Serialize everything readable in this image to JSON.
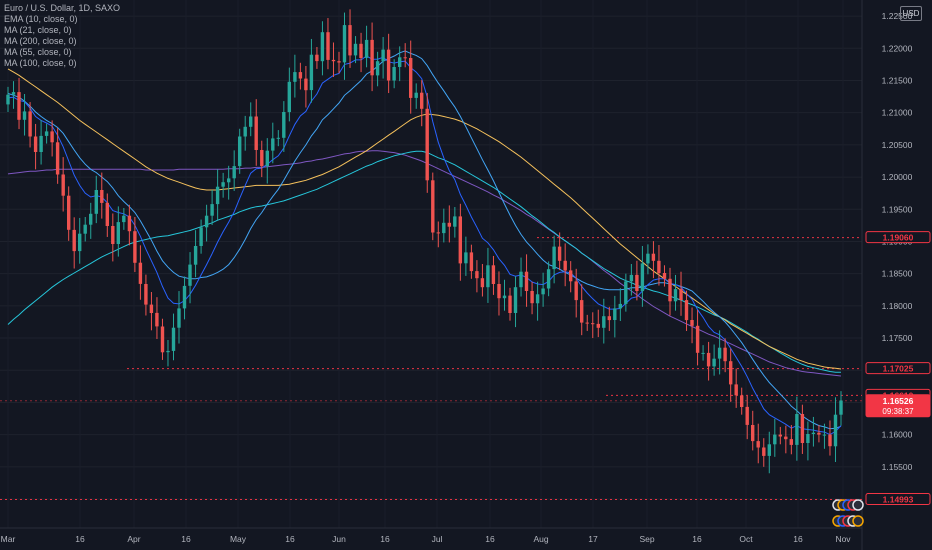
{
  "legend": {
    "title": "Euro / U.S. Dollar, 1D, SAXO",
    "indicators": [
      "EMA (10, close, 0)",
      "MA (21, close, 0)",
      "MA (200, close, 0)",
      "MA (55, close, 0)",
      "MA (100, close, 0)"
    ]
  },
  "currency_badge": "USD",
  "colors": {
    "background": "#131722",
    "up": "#26a69a",
    "down": "#ef5350",
    "ema10": "#2962ff",
    "ma21": "#42a5f5",
    "ma200": "#7e57c2",
    "ma55": "#26c6da",
    "ma100": "#f5c15c",
    "level": "#f23645"
  },
  "chart_data": {
    "type": "candlestick",
    "title": "Euro / U.S. Dollar, 1D, SAXO",
    "ylim": [
      1.1455,
      1.2275
    ],
    "y_ticks": [
      "1.22500",
      "1.22000",
      "1.21500",
      "1.21000",
      "1.20500",
      "1.20000",
      "1.19500",
      "1.19000",
      "1.18500",
      "1.18000",
      "1.17500",
      "1.17000",
      "1.16500",
      "1.16000",
      "1.15500",
      "1.15000"
    ],
    "x_ticks": [
      "Mar",
      "16",
      "Apr",
      "16",
      "May",
      "16",
      "Jun",
      "16",
      "Jul",
      "16",
      "Aug",
      "17",
      "Sep",
      "16",
      "Oct",
      "16",
      "Nov"
    ],
    "price_labels": [
      {
        "text": "1.19060",
        "value": 1.1906,
        "style": "outline"
      },
      {
        "text": "1.17025",
        "value": 1.17025,
        "style": "outline"
      },
      {
        "text": "1.16610",
        "value": 1.1661,
        "style": "outline"
      },
      {
        "text": "1.16526",
        "value": 1.16526,
        "style": "filled",
        "sub": "09:38:37"
      },
      {
        "text": "1.14993",
        "value": 1.14993,
        "style": "outline"
      }
    ],
    "levels": [
      1.1906,
      1.17025,
      1.1661,
      1.16526,
      1.14993
    ],
    "closes": [
      1.2128,
      1.2132,
      1.2089,
      1.2102,
      1.2063,
      1.2039,
      1.2064,
      1.2071,
      1.2054,
      1.2004,
      1.1971,
      1.1918,
      1.1885,
      1.1912,
      1.1926,
      1.1943,
      1.198,
      1.196,
      1.1924,
      1.1896,
      1.193,
      1.194,
      1.1916,
      1.1867,
      1.1834,
      1.1802,
      1.1789,
      1.1768,
      1.1728,
      1.173,
      1.1766,
      1.1796,
      1.1831,
      1.1864,
      1.1893,
      1.1922,
      1.194,
      1.1958,
      1.1985,
      1.1992,
      1.1998,
      1.2017,
      1.2063,
      1.2078,
      1.2094,
      1.2042,
      1.2017,
      1.2041,
      1.206,
      1.2061,
      1.2101,
      1.2148,
      1.2163,
      1.2153,
      1.2135,
      1.219,
      1.218,
      1.2225,
      1.2182,
      1.218,
      1.2178,
      1.2236,
      1.2189,
      1.2207,
      1.2185,
      1.2213,
      1.2158,
      1.218,
      1.2198,
      1.215,
      1.2171,
      1.2186,
      1.2185,
      1.2123,
      1.2131,
      1.2106,
      1.1995,
      1.1914,
      1.1913,
      1.1929,
      1.1923,
      1.1939,
      1.1866,
      1.1883,
      1.1854,
      1.1843,
      1.1829,
      1.1863,
      1.1834,
      1.1812,
      1.1816,
      1.1789,
      1.1829,
      1.1853,
      1.1823,
      1.1804,
      1.1818,
      1.1827,
      1.1857,
      1.1892,
      1.187,
      1.1855,
      1.1838,
      1.1809,
      1.1774,
      1.1773,
      1.1772,
      1.1766,
      1.1784,
      1.1778,
      1.1796,
      1.1803,
      1.1838,
      1.1848,
      1.1823,
      1.1866,
      1.1881,
      1.187,
      1.1851,
      1.1842,
      1.1807,
      1.1826,
      1.1809,
      1.1778,
      1.1769,
      1.1727,
      1.1727,
      1.1706,
      1.1718,
      1.1735,
      1.1714,
      1.1678,
      1.1661,
      1.1643,
      1.1615,
      1.159,
      1.158,
      1.1567,
      1.1585,
      1.16,
      1.1597,
      1.1593,
      1.1584,
      1.1632,
      1.1587,
      1.1601,
      1.1603,
      1.16,
      1.16,
      1.1582,
      1.1631,
      1.1653
    ],
    "ema10": [
      1.2123,
      1.2124,
      1.2119,
      1.2117,
      1.2107,
      1.2094,
      1.2088,
      1.2084,
      1.2079,
      1.2065,
      1.2047,
      1.2025,
      1.2003,
      1.1987,
      1.1975,
      1.1969,
      1.1971,
      1.1969,
      1.196,
      1.1948,
      1.1945,
      1.1943,
      1.1938,
      1.1925,
      1.1908,
      1.1888,
      1.187,
      1.1852,
      1.183,
      1.1812,
      1.1804,
      1.1803,
      1.1808,
      1.1818,
      1.1832,
      1.1848,
      1.1864,
      1.1881,
      1.1899,
      1.1915,
      1.193,
      1.1946,
      1.1967,
      1.1987,
      1.2006,
      1.2013,
      1.2014,
      1.202,
      1.2027,
      1.2033,
      1.2045,
      1.2064,
      1.2082,
      1.2095,
      1.2102,
      1.2118,
      1.2129,
      1.2146,
      1.2152,
      1.2158,
      1.2161,
      1.2175,
      1.2177,
      1.2182,
      1.2182,
      1.2188,
      1.2183,
      1.2183,
      1.2186,
      1.2179,
      1.2177,
      1.2179,
      1.218,
      1.217,
      1.2163,
      1.2153,
      1.2124,
      1.2086,
      1.2054,
      1.203,
      1.201,
      1.1996,
      1.1973,
      1.1956,
      1.1938,
      1.1922,
      1.1905,
      1.1898,
      1.1887,
      1.1873,
      1.1863,
      1.1849,
      1.1846,
      1.1848,
      1.1844,
      1.1837,
      1.1834,
      1.1833,
      1.1838,
      1.1848,
      1.1852,
      1.1853,
      1.1851,
      1.1843,
      1.183,
      1.182,
      1.1811,
      1.1803,
      1.1799,
      1.1795,
      1.1795,
      1.1796,
      1.1804,
      1.1812,
      1.1814,
      1.1823,
      1.1833,
      1.184,
      1.1842,
      1.1842,
      1.1835,
      1.1833,
      1.1829,
      1.1819,
      1.181,
      1.1794,
      1.1782,
      1.1768,
      1.1759,
      1.1755,
      1.1747,
      1.1734,
      1.172,
      1.1706,
      1.169,
      1.1672,
      1.1656,
      1.164,
      1.1631,
      1.1626,
      1.1621,
      1.1616,
      1.161,
      1.1614,
      1.1609,
      1.1608,
      1.1607,
      1.1605,
      1.1604,
      1.16,
      1.1605,
      1.1614
    ],
    "ma21": [
      1.213,
      1.2127,
      1.2124,
      1.2118,
      1.211,
      1.2101,
      1.2094,
      1.2088,
      1.2083,
      1.2077,
      1.2068,
      1.2055,
      1.2042,
      1.203,
      1.202,
      1.2012,
      1.2007,
      1.2,
      1.1993,
      1.1983,
      1.1971,
      1.1962,
      1.1954,
      1.1945,
      1.1932,
      1.1917,
      1.1902,
      1.1885,
      1.187,
      1.186,
      1.1852,
      1.1846,
      1.1844,
      1.1842,
      1.1842,
      1.1844,
      1.1845,
      1.1848,
      1.1852,
      1.1857,
      1.1864,
      1.1875,
      1.1888,
      1.1903,
      1.192,
      1.1934,
      1.1945,
      1.1958,
      1.197,
      1.1981,
      1.1995,
      1.201,
      1.2025,
      1.2038,
      1.205,
      1.2064,
      1.2075,
      1.2089,
      1.2097,
      1.2106,
      1.2115,
      1.2127,
      1.2134,
      1.2142,
      1.215,
      1.216,
      1.2165,
      1.2172,
      1.218,
      1.2184,
      1.2188,
      1.2193,
      1.2196,
      1.2192,
      1.2189,
      1.2184,
      1.2173,
      1.2159,
      1.2146,
      1.2134,
      1.2121,
      1.2109,
      1.2094,
      1.2078,
      1.2061,
      1.2044,
      1.2027,
      1.2011,
      1.1994,
      1.1976,
      1.1958,
      1.1941,
      1.1925,
      1.1911,
      1.1899,
      1.189,
      1.188,
      1.1871,
      1.1864,
      1.1861,
      1.1857,
      1.1852,
      1.1848,
      1.1843,
      1.1838,
      1.1834,
      1.1831,
      1.1828,
      1.1826,
      1.1825,
      1.1825,
      1.1825,
      1.1826,
      1.1828,
      1.1828,
      1.1829,
      1.1832,
      1.1834,
      1.1836,
      1.1836,
      1.1834,
      1.1833,
      1.183,
      1.1827,
      1.1823,
      1.1815,
      1.1807,
      1.1798,
      1.179,
      1.1783,
      1.1775,
      1.1765,
      1.1754,
      1.1743,
      1.173,
      1.1717,
      1.1704,
      1.1692,
      1.1681,
      1.1672,
      1.1663,
      1.1654,
      1.1644,
      1.1637,
      1.1629,
      1.1623,
      1.1618,
      1.1614,
      1.1612,
      1.1609,
      1.161,
      1.1613
    ],
    "ma55": [
      1.1771,
      1.1779,
      1.1786,
      1.1794,
      1.1801,
      1.1808,
      1.1815,
      1.1822,
      1.1829,
      1.1835,
      1.1841,
      1.1846,
      1.1851,
      1.1856,
      1.1861,
      1.1866,
      1.1871,
      1.1876,
      1.188,
      1.1884,
      1.1888,
      1.1892,
      1.1896,
      1.1899,
      1.1901,
      1.1903,
      1.1905,
      1.1907,
      1.1908,
      1.1909,
      1.1911,
      1.1913,
      1.1915,
      1.1917,
      1.192,
      1.1923,
      1.1926,
      1.1929,
      1.1933,
      1.1936,
      1.1939,
      1.1942,
      1.1946,
      1.1949,
      1.1952,
      1.1954,
      1.1955,
      1.1957,
      1.1959,
      1.1961,
      1.1963,
      1.1966,
      1.1969,
      1.1972,
      1.1975,
      1.1978,
      1.1981,
      1.1985,
      1.1989,
      1.1993,
      1.1997,
      1.2001,
      1.2005,
      1.2009,
      1.2013,
      1.2017,
      1.202,
      1.2024,
      1.2027,
      1.203,
      1.2033,
      1.2035,
      1.2037,
      1.2039,
      1.204,
      1.204,
      1.2038,
      1.2034,
      1.203,
      1.2027,
      1.2023,
      1.2019,
      1.2014,
      1.2009,
      1.2004,
      1.1999,
      1.1994,
      1.1989,
      1.1984,
      1.1978,
      1.1972,
      1.1966,
      1.196,
      1.1954,
      1.1947,
      1.194,
      1.1934,
      1.1927,
      1.192,
      1.1914,
      1.1907,
      1.1901,
      1.1895,
      1.1889,
      1.1882,
      1.1876,
      1.187,
      1.1864,
      1.1858,
      1.1853,
      1.1848,
      1.1843,
      1.1839,
      1.1836,
      1.1832,
      1.1829,
      1.1826,
      1.1823,
      1.1821,
      1.1818,
      1.1815,
      1.1812,
      1.1809,
      1.1805,
      1.1802,
      1.1798,
      1.1794,
      1.179,
      1.1786,
      1.1783,
      1.1779,
      1.1774,
      1.1769,
      1.1764,
      1.1759,
      1.1753,
      1.1748,
      1.1742,
      1.1737,
      1.1732,
      1.1727,
      1.1722,
      1.1717,
      1.1713,
      1.1709,
      1.1706,
      1.1704,
      1.1702,
      1.17,
      1.1698,
      1.1697,
      1.1697
    ],
    "ma100": [
      1.2168,
      1.2163,
      1.2158,
      1.2152,
      1.2146,
      1.214,
      1.2134,
      1.2128,
      1.2122,
      1.2116,
      1.2109,
      1.2102,
      1.2095,
      1.2088,
      1.2082,
      1.2076,
      1.207,
      1.2064,
      1.2058,
      1.2052,
      1.2046,
      1.204,
      1.2034,
      1.2028,
      1.2022,
      1.2016,
      1.2011,
      1.2006,
      1.2002,
      1.1998,
      1.1995,
      1.1992,
      1.1989,
      1.1986,
      1.1983,
      1.1981,
      1.198,
      1.198,
      1.198,
      1.1981,
      1.1982,
      1.1983,
      1.1984,
      1.1985,
      1.1986,
      1.1987,
      1.1987,
      1.1987,
      1.1987,
      1.1987,
      1.1988,
      1.1989,
      1.1991,
      1.1993,
      1.1995,
      1.1998,
      1.2001,
      1.2004,
      1.2008,
      1.2012,
      1.2016,
      1.2021,
      1.2026,
      1.2031,
      1.2036,
      1.2041,
      1.2047,
      1.2053,
      1.2059,
      1.2065,
      1.2071,
      1.2077,
      1.2083,
      1.2089,
      1.2093,
      1.2096,
      1.2098,
      1.2097,
      1.2096,
      1.2094,
      1.2092,
      1.209,
      1.2087,
      1.2083,
      1.2079,
      1.2075,
      1.207,
      1.2065,
      1.206,
      1.2055,
      1.2049,
      1.2043,
      1.2037,
      1.2031,
      1.2024,
      1.2017,
      1.201,
      1.2003,
      1.1996,
      1.1989,
      1.1982,
      1.1975,
      1.1968,
      1.196,
      1.1952,
      1.1944,
      1.1936,
      1.1928,
      1.192,
      1.1912,
      1.1904,
      1.1896,
      1.1889,
      1.1882,
      1.1875,
      1.1868,
      1.1861,
      1.1854,
      1.1848,
      1.1842,
      1.1836,
      1.183,
      1.1824,
      1.1818,
      1.1812,
      1.1806,
      1.18,
      1.1794,
      1.1788,
      1.1783,
      1.1778,
      1.1772,
      1.1767,
      1.1762,
      1.1757,
      1.1752,
      1.1747,
      1.1742,
      1.1737,
      1.1733,
      1.1729,
      1.1725,
      1.1721,
      1.1717,
      1.1714,
      1.1711,
      1.1709,
      1.1707,
      1.1705,
      1.1704,
      1.1703,
      1.1702
    ],
    "ma200": [
      1.2005,
      1.2006,
      1.2007,
      1.2008,
      1.2009,
      1.2009,
      1.201,
      1.2011,
      1.2011,
      1.2012,
      1.2012,
      1.2012,
      1.2012,
      1.2012,
      1.2012,
      1.2012,
      1.2012,
      1.2012,
      1.2012,
      1.2012,
      1.2012,
      1.2012,
      1.2012,
      1.2012,
      1.2012,
      1.2011,
      1.2011,
      1.2011,
      1.2011,
      1.2011,
      1.2011,
      1.2012,
      1.2012,
      1.2012,
      1.2012,
      1.2012,
      1.2012,
      1.2012,
      1.2012,
      1.2012,
      1.2013,
      1.2013,
      1.2013,
      1.2014,
      1.2014,
      1.2015,
      1.2015,
      1.2016,
      1.2017,
      1.2018,
      1.2019,
      1.202,
      1.2021,
      1.2022,
      1.2024,
      1.2025,
      1.2027,
      1.2028,
      1.203,
      1.2032,
      1.2034,
      1.2036,
      1.2037,
      1.2039,
      1.204,
      1.204,
      1.2041,
      1.2041,
      1.204,
      1.2039,
      1.2038,
      1.2036,
      1.2034,
      1.2031,
      1.2028,
      1.2025,
      1.2021,
      1.2017,
      1.2013,
      1.2009,
      1.2005,
      1.2001,
      1.1997,
      1.1993,
      1.1989,
      1.1985,
      1.1981,
      1.1977,
      1.1972,
      1.1968,
      1.1963,
      1.1958,
      1.1953,
      1.1948,
      1.1942,
      1.1937,
      1.1931,
      1.1925,
      1.1919,
      1.1913,
      1.1907,
      1.1901,
      1.1895,
      1.1889,
      1.1882,
      1.1876,
      1.1869,
      1.1862,
      1.1855,
      1.1849,
      1.1842,
      1.1835,
      1.1829,
      1.1823,
      1.1817,
      1.1811,
      1.1805,
      1.1799,
      1.1794,
      1.1789,
      1.1784,
      1.178,
      1.1776,
      1.1772,
      1.1768,
      1.1764,
      1.176,
      1.1756,
      1.1753,
      1.1749,
      1.1745,
      1.1741,
      1.1737,
      1.1733,
      1.1729,
      1.1725,
      1.1721,
      1.1717,
      1.1713,
      1.171,
      1.1707,
      1.1704,
      1.1702,
      1.17,
      1.1698,
      1.1697,
      1.1696,
      1.1695,
      1.1694,
      1.1693,
      1.1692,
      1.1691
    ]
  }
}
